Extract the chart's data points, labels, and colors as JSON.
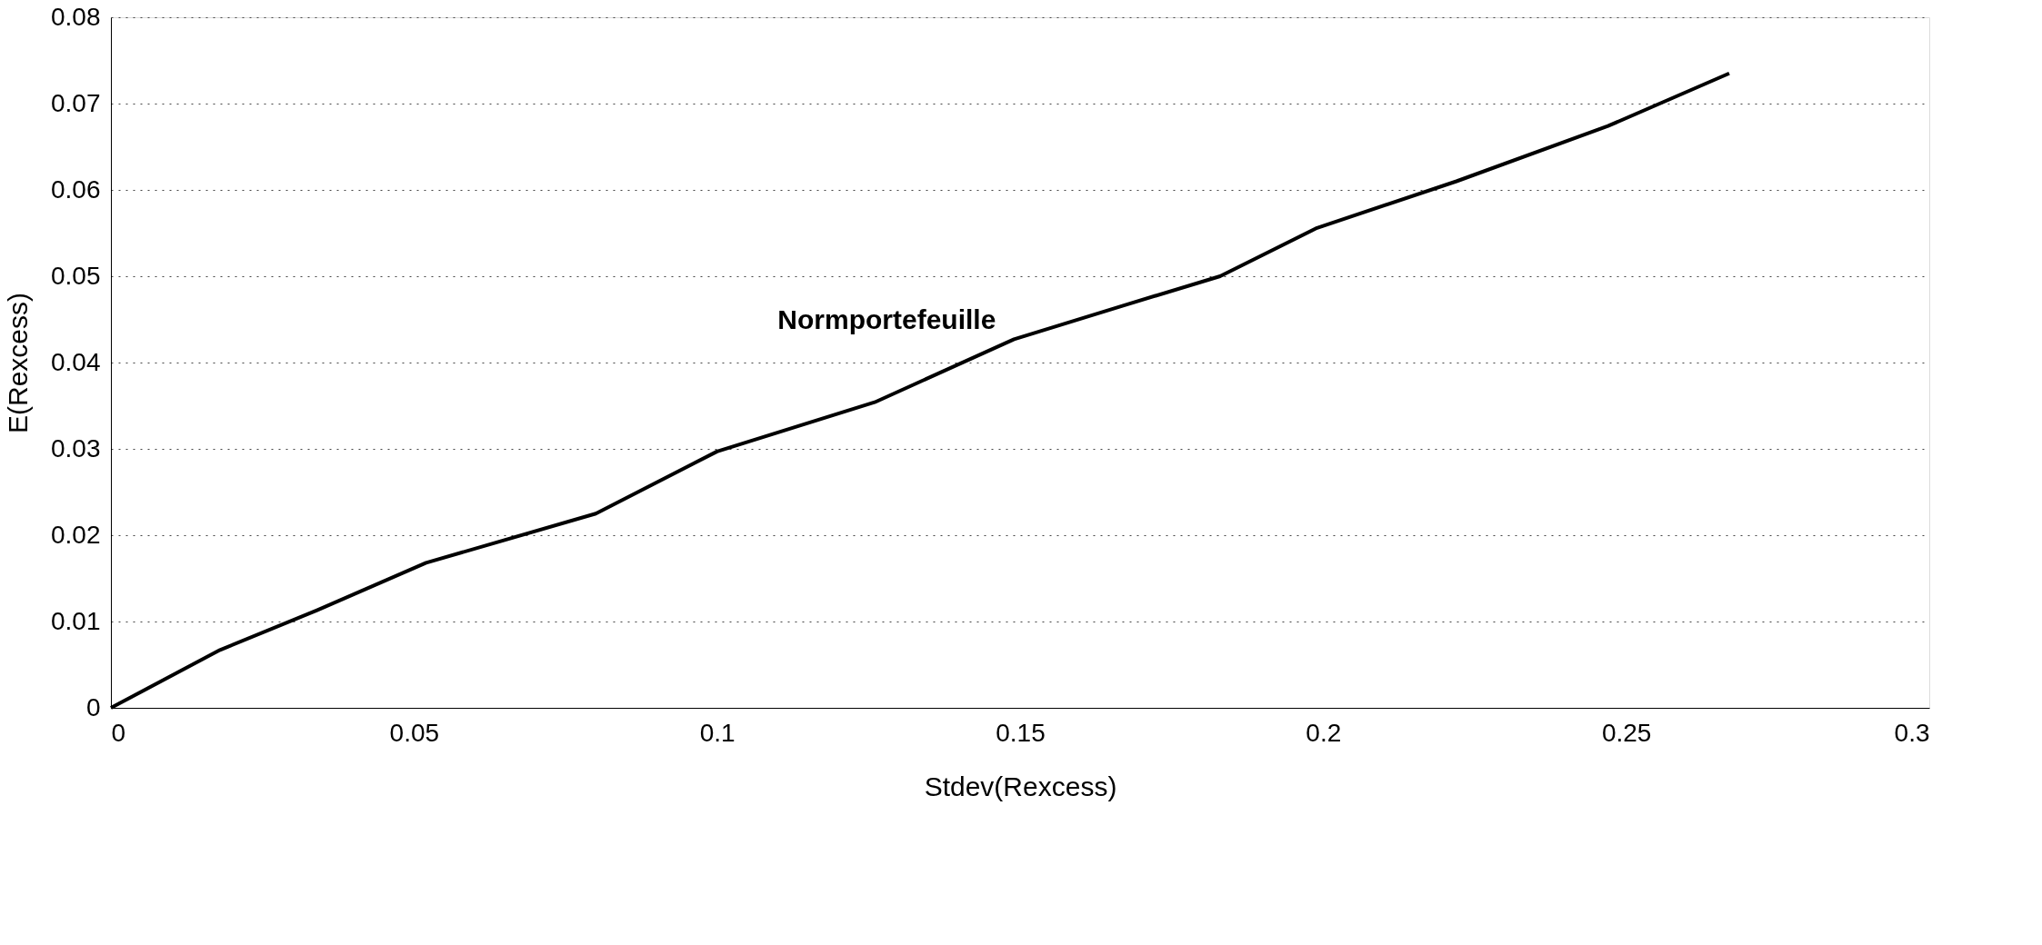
{
  "chart_data": {
    "type": "line",
    "xlabel": "Stdev(Rexcess)",
    "ylabel": "E(Rexcess)",
    "x": [
      0,
      0.018,
      0.034,
      0.052,
      0.08,
      0.1,
      0.126,
      0.149,
      0.167,
      0.183,
      0.199,
      0.222,
      0.247,
      0.267
    ],
    "series": [
      {
        "name": "Normportefeuille",
        "color": "#000000",
        "values": [
          0,
          0.0067,
          0.0113,
          0.0168,
          0.0225,
          0.0297,
          0.0354,
          0.0427,
          0.0466,
          0.05,
          0.0556,
          0.061,
          0.0674,
          0.0735
        ]
      }
    ],
    "xlim": [
      0,
      0.3
    ],
    "xticks": [
      0,
      0.05,
      0.1,
      0.15,
      0.2,
      0.25,
      0.3
    ],
    "ylim": [
      0,
      0.08
    ],
    "yticks": [
      0,
      0.01,
      0.02,
      0.03,
      0.04,
      0.05,
      0.06,
      0.07,
      0.08
    ],
    "grid": "y",
    "legend": false,
    "marker": "none",
    "line_style": "solid"
  }
}
